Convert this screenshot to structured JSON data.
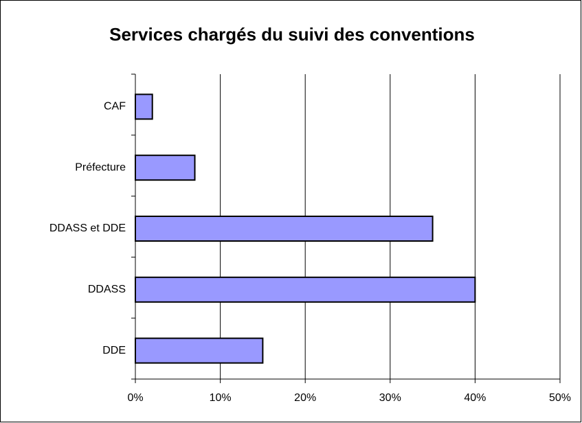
{
  "chart_data": {
    "type": "hbar",
    "title": "Services chargés du suivi des conventions",
    "categories": [
      "CAF",
      "Préfecture",
      "DDASS et DDE",
      "DDASS",
      "DDE"
    ],
    "values": [
      2,
      7,
      35,
      40,
      15
    ],
    "color": "#9999ff",
    "xlim": [
      0,
      50
    ],
    "xticks": [
      {
        "value": 0,
        "label": "0%"
      },
      {
        "value": 10,
        "label": "10%"
      },
      {
        "value": 20,
        "label": "20%"
      },
      {
        "value": 30,
        "label": "30%"
      },
      {
        "value": 40,
        "label": "40%"
      },
      {
        "value": 50,
        "label": "50%"
      }
    ],
    "grid": true
  }
}
